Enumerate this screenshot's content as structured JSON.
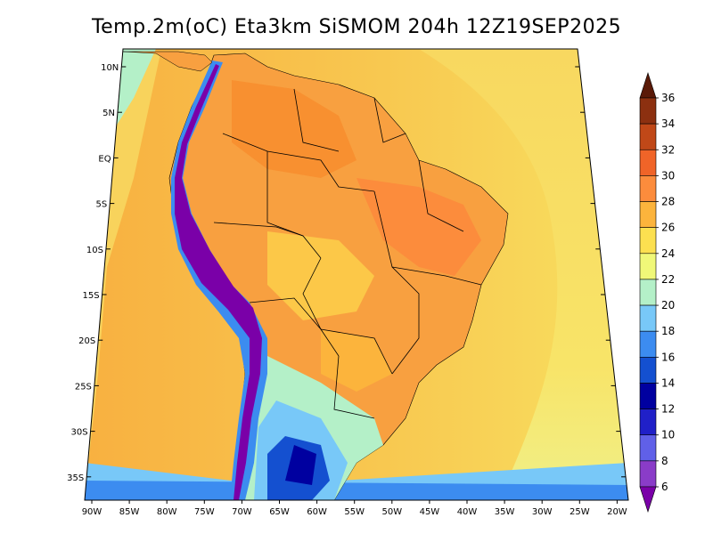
{
  "title": "Temp.2m(oC) Eta3km SiSMOM 204h 12Z19SEP2025",
  "map": {
    "lat_labels": [
      "10N",
      "5N",
      "EQ",
      "5S",
      "10S",
      "15S",
      "20S",
      "25S",
      "30S",
      "35S"
    ],
    "lon_labels": [
      "90W",
      "85W",
      "80W",
      "75W",
      "70W",
      "65W",
      "60W",
      "55W",
      "50W",
      "45W",
      "40W",
      "35W",
      "30W",
      "25W",
      "20W"
    ]
  },
  "colorbar": {
    "levels": [
      6,
      8,
      10,
      12,
      14,
      16,
      18,
      20,
      22,
      24,
      26,
      28,
      30,
      32,
      34,
      36
    ],
    "colors": [
      "#7a00a8",
      "#8a3cc8",
      "#6060e8",
      "#2020c8",
      "#0000a0",
      "#1450d0",
      "#3c8cf0",
      "#78c8f8",
      "#b4f0c8",
      "#f0f878",
      "#fce050",
      "#fcb43c",
      "#fc8c3c",
      "#f06428",
      "#c04818",
      "#8c3010",
      "#5a1a08"
    ]
  },
  "colors": {
    "ocean_warm": "#f8c850",
    "ocean_mid": "#f8e060",
    "ocean_cool": "#f0f080",
    "land_hot": "#f89038",
    "border": "#000000"
  }
}
